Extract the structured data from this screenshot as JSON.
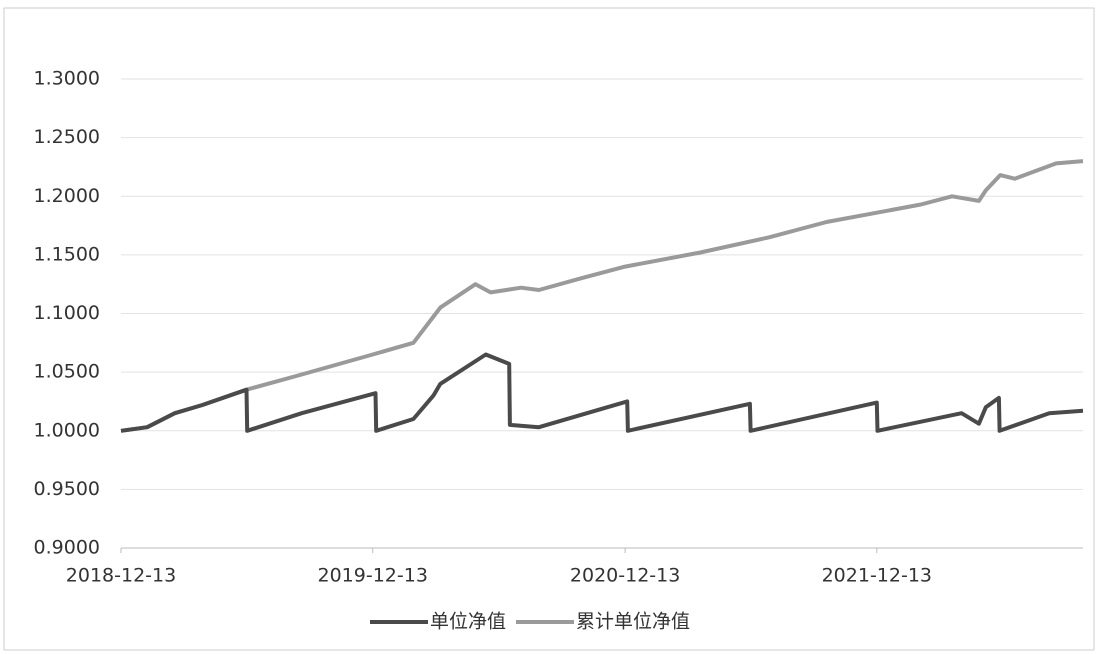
{
  "chart_data": {
    "type": "line",
    "xlim": [
      "2018-12-13",
      "2022-10-08"
    ],
    "xticks": [
      "2018-12-13",
      "2019-12-13",
      "2020-12-13",
      "2021-12-13"
    ],
    "ylim": [
      0.9,
      1.3
    ],
    "yticks": [
      {
        "value": 0.9,
        "label": "0.9000"
      },
      {
        "value": 0.95,
        "label": "0.9500"
      },
      {
        "value": 1.0,
        "label": "1.0000"
      },
      {
        "value": 1.05,
        "label": "1.0500"
      },
      {
        "value": 1.1,
        "label": "1.1000"
      },
      {
        "value": 1.15,
        "label": "1.1500"
      },
      {
        "value": 1.2,
        "label": "1.2000"
      },
      {
        "value": 1.25,
        "label": "1.2500"
      },
      {
        "value": 1.3,
        "label": "1.3000"
      }
    ],
    "grid": true,
    "series": [
      {
        "name": "单位净值",
        "color": "#4a4a4a",
        "x": [
          "2018-12-13",
          "2019-01-20",
          "2019-03-01",
          "2019-04-10",
          "2019-06-13",
          "2019-06-14",
          "2019-09-01",
          "2019-12-17",
          "2019-12-18",
          "2020-02-10",
          "2020-03-10",
          "2020-03-20",
          "2020-05-25",
          "2020-06-28",
          "2020-06-29",
          "2020-08-10",
          "2020-12-16",
          "2020-12-17",
          "2021-06-12",
          "2021-06-13",
          "2021-12-13",
          "2021-12-14",
          "2022-04-15",
          "2022-05-10",
          "2022-05-20",
          "2022-06-08",
          "2022-06-09",
          "2022-08-20",
          "2022-10-08"
        ],
        "values": [
          1.0,
          1.003,
          1.015,
          1.022,
          1.035,
          1.0,
          1.015,
          1.032,
          1.0,
          1.01,
          1.03,
          1.04,
          1.065,
          1.057,
          1.005,
          1.003,
          1.025,
          1.0,
          1.023,
          1.0,
          1.024,
          1.0,
          1.015,
          1.006,
          1.02,
          1.028,
          1.0,
          1.015,
          1.017
        ]
      },
      {
        "name": "累计单位净值",
        "color": "#9a9a9a",
        "x": [
          "2018-12-13",
          "2019-01-20",
          "2019-03-01",
          "2019-04-10",
          "2019-06-13",
          "2019-09-01",
          "2019-12-13",
          "2020-02-10",
          "2020-03-20",
          "2020-05-10",
          "2020-06-01",
          "2020-07-15",
          "2020-08-10",
          "2020-10-10",
          "2020-12-13",
          "2021-04-01",
          "2021-07-10",
          "2021-10-01",
          "2021-12-13",
          "2022-02-15",
          "2022-04-01",
          "2022-05-10",
          "2022-05-20",
          "2022-06-10",
          "2022-07-01",
          "2022-08-30",
          "2022-10-08"
        ],
        "values": [
          1.0,
          1.003,
          1.015,
          1.022,
          1.035,
          1.048,
          1.065,
          1.075,
          1.105,
          1.125,
          1.118,
          1.122,
          1.12,
          1.13,
          1.14,
          1.152,
          1.165,
          1.178,
          1.186,
          1.193,
          1.2,
          1.196,
          1.205,
          1.218,
          1.215,
          1.228,
          1.23
        ]
      }
    ]
  }
}
